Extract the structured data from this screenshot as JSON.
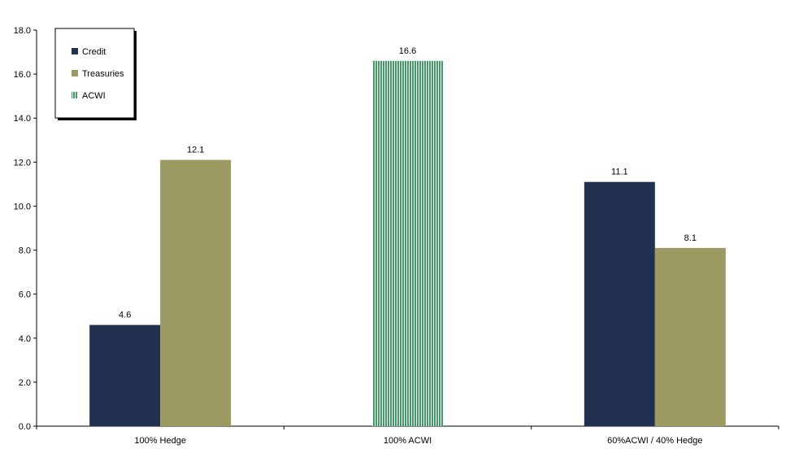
{
  "chart_data": {
    "type": "bar",
    "title": "",
    "xlabel": "",
    "ylabel": "",
    "ylim": [
      0,
      18
    ],
    "ytick_step": 2,
    "ytick_labels": [
      "0.0",
      "2.0",
      "4.0",
      "6.0",
      "8.0",
      "10.0",
      "12.0",
      "14.0",
      "16.0",
      "18.0"
    ],
    "grid": false,
    "legend_position": "top-left",
    "categories": [
      "100% Hedge",
      "100% ACWI",
      "60%ACWI / 40% Hedge"
    ],
    "series": [
      {
        "name": "Credit",
        "color": "#22314f",
        "pattern": "solid",
        "values": [
          4.6,
          null,
          11.1
        ],
        "labels": [
          "4.6",
          null,
          "11.1"
        ]
      },
      {
        "name": "Treasuries",
        "color": "#9b9a62",
        "pattern": "solid",
        "values": [
          12.1,
          null,
          8.1
        ],
        "labels": [
          "12.1",
          null,
          "8.1"
        ]
      },
      {
        "name": "ACWI",
        "color": "#1f8a4c",
        "pattern": "vertical-stripes",
        "values": [
          null,
          16.6,
          null
        ],
        "labels": [
          null,
          "16.6",
          null
        ]
      }
    ]
  }
}
